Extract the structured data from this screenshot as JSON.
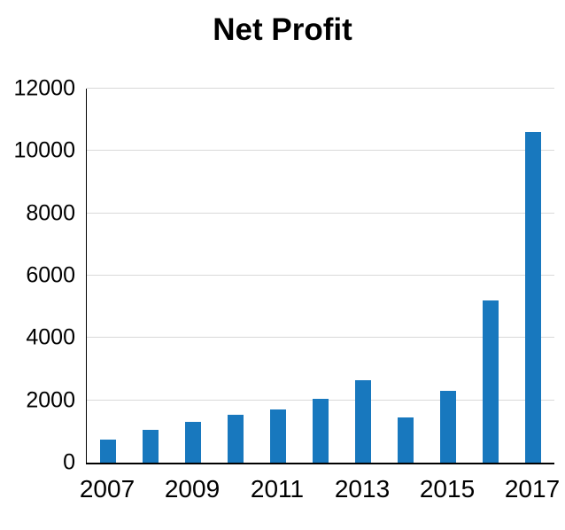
{
  "chart_data": {
    "type": "bar",
    "title": "Net Profit",
    "categories": [
      "2007",
      "2008",
      "2009",
      "2010",
      "2011",
      "2012",
      "2013",
      "2014",
      "2015",
      "2016",
      "2017"
    ],
    "values": [
      750,
      1050,
      1300,
      1550,
      1700,
      2050,
      2650,
      1450,
      2300,
      5200,
      10600
    ],
    "xlabel": "",
    "ylabel": "",
    "ylim": [
      0,
      12000
    ],
    "ytick_step": 2000,
    "y_tick_labels": [
      "0",
      "2000",
      "4000",
      "6000",
      "8000",
      "10000",
      "12000"
    ],
    "x_tick_labels_shown": [
      "2007",
      "2009",
      "2011",
      "2013",
      "2015",
      "2017"
    ],
    "bar_color": "#1878be",
    "gridline_color": "#d9d9d9",
    "axis_color": "#000000",
    "grid": true,
    "legend": false
  }
}
